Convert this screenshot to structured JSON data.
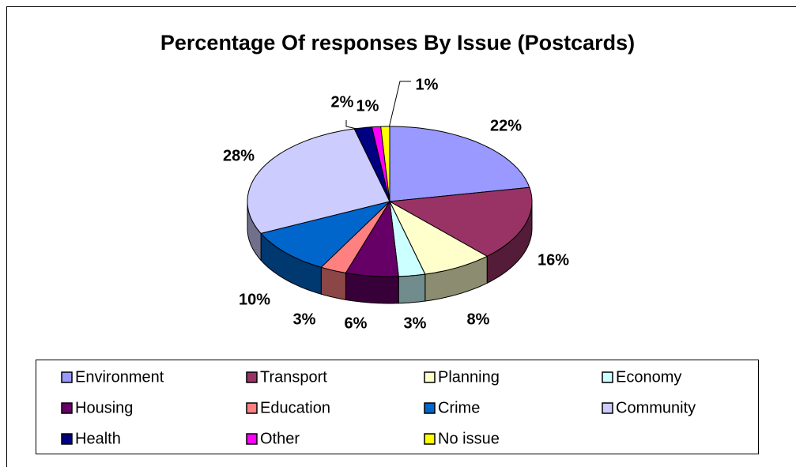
{
  "chart_data": {
    "type": "pie",
    "title": "Percentage Of responses By Issue (Postcards)",
    "categories": [
      "Environment",
      "Transport",
      "Planning",
      "Economy",
      "Housing",
      "Education",
      "Crime",
      "Community",
      "Health",
      "Other",
      "No issue"
    ],
    "values": [
      22,
      16,
      8,
      3,
      6,
      3,
      10,
      28,
      2,
      1,
      1
    ],
    "value_labels": [
      "22%",
      "16%",
      "8%",
      "3%",
      "6%",
      "3%",
      "10%",
      "28%",
      "2%",
      "1%",
      "1%"
    ],
    "colors": [
      "#9999ff",
      "#993366",
      "#ffffcc",
      "#ccffff",
      "#660066",
      "#ff8080",
      "#0066cc",
      "#ccccff",
      "#000080",
      "#ff00ff",
      "#ffff00"
    ],
    "legend": "bottom"
  }
}
